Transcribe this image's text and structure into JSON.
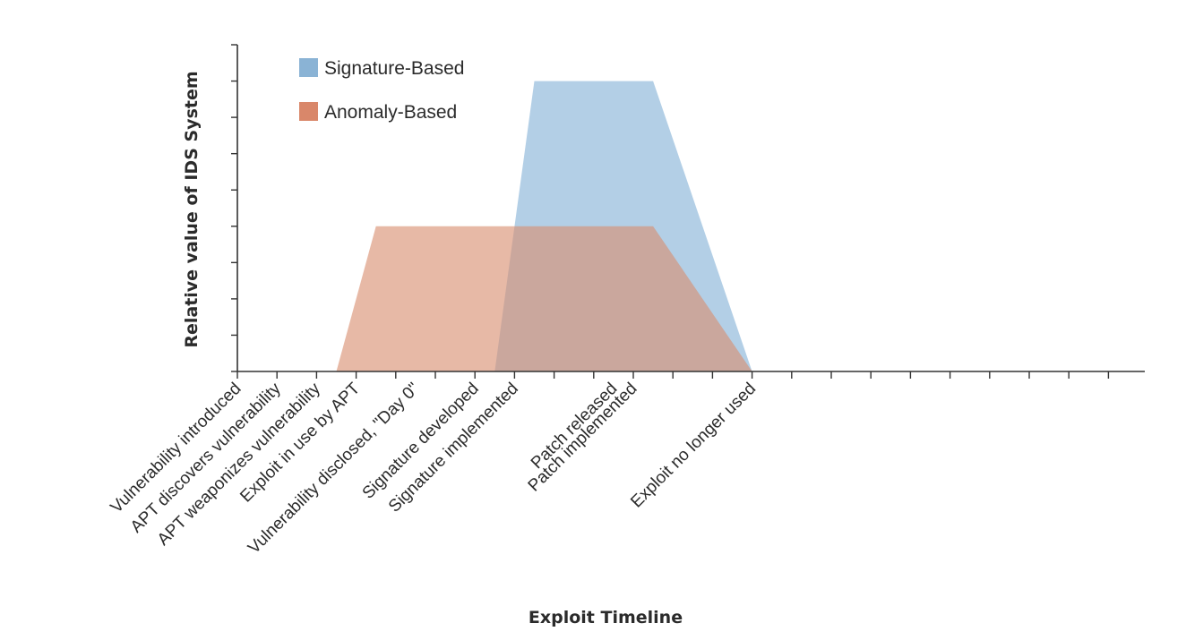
{
  "chart_data": {
    "type": "area",
    "xlabel": "Exploit Timeline",
    "ylabel": "Relative value of IDS System",
    "categories": [
      "Vulnerability introduced",
      "APT discovers vulnerability",
      "APT weaponizes vulnerability",
      "Exploit in use by APT",
      "Vulnerability disclosed, \"Day 0\"",
      "Signature developed",
      "Signature implemented",
      "Patch released",
      "Patch implemented",
      "Exploit no longer used"
    ],
    "category_positions": [
      0,
      1,
      2,
      3,
      4.5,
      6,
      7,
      9.5,
      10,
      13
    ],
    "x_range": [
      0,
      13
    ],
    "ylim": [
      0,
      9
    ],
    "y_ticks": 9,
    "grid": false,
    "legend_position": "top-left",
    "series": [
      {
        "name": "Signature-Based",
        "color": "#8ab3d5",
        "fill": "#a9c8e2",
        "opacity": 0.88,
        "points": [
          [
            6.5,
            0
          ],
          [
            7.5,
            8
          ],
          [
            10.5,
            8
          ],
          [
            13,
            0
          ]
        ]
      },
      {
        "name": "Anomaly-Based",
        "color": "#d9876a",
        "fill": "#d88e70",
        "opacity": 0.62,
        "points": [
          [
            2.5,
            0
          ],
          [
            3.5,
            4
          ],
          [
            10.5,
            4
          ],
          [
            13,
            0
          ]
        ]
      }
    ]
  }
}
